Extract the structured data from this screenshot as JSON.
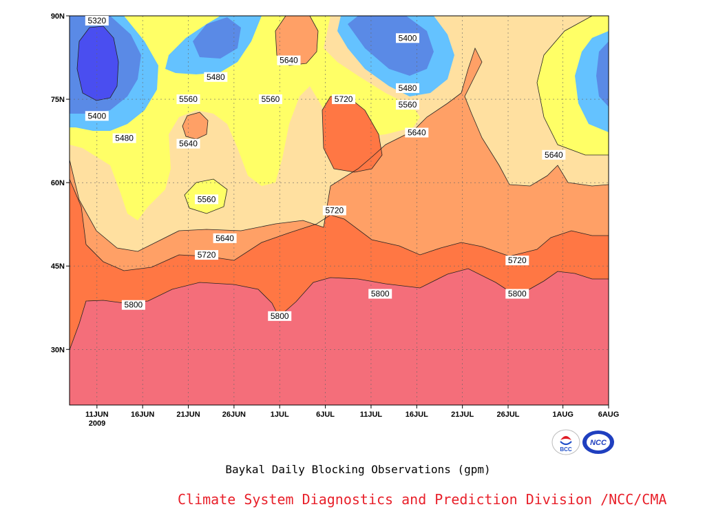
{
  "chart_data": {
    "type": "contour",
    "title": "Baykal Daily Blocking Observations (gpm)",
    "credit": "Climate System Diagnostics and Prediction Division /NCC/CMA",
    "y_axis": {
      "ticks": [
        "90N",
        "75N",
        "60N",
        "45N",
        "30N"
      ],
      "range_lat": [
        20,
        90
      ]
    },
    "x_axis": {
      "ticks": [
        "11JUN",
        "16JUN",
        "21JUN",
        "26JUN",
        "1JUL",
        "6JUL",
        "11JUL",
        "16JUL",
        "21JUL",
        "26JUL",
        "1AUG",
        "6AUG"
      ],
      "year_label": "2009",
      "range": [
        "2009-06-08",
        "2009-08-06"
      ]
    },
    "contour_levels": [
      5320,
      5400,
      5480,
      5560,
      5640,
      5720,
      5800
    ],
    "contour_labels": [
      {
        "text": "5320",
        "date": "2009-06-11",
        "lat": 90
      },
      {
        "text": "5400",
        "date": "2009-06-11",
        "lat": 72
      },
      {
        "text": "5480",
        "date": "2009-06-14",
        "lat": 68
      },
      {
        "text": "5480",
        "date": "2009-06-24",
        "lat": 79
      },
      {
        "text": "5560",
        "date": "2009-06-21",
        "lat": 75
      },
      {
        "text": "5640",
        "date": "2009-06-21",
        "lat": 67
      },
      {
        "text": "5560",
        "date": "2009-06-23",
        "lat": 57
      },
      {
        "text": "5640",
        "date": "2009-06-25",
        "lat": 50
      },
      {
        "text": "5720",
        "date": "2009-06-23",
        "lat": 47
      },
      {
        "text": "5800",
        "date": "2009-06-15",
        "lat": 38
      },
      {
        "text": "5560",
        "date": "2009-06-30",
        "lat": 75
      },
      {
        "text": "5640",
        "date": "2009-07-02",
        "lat": 82
      },
      {
        "text": "5720",
        "date": "2009-07-08",
        "lat": 75
      },
      {
        "text": "5720",
        "date": "2009-07-07",
        "lat": 55
      },
      {
        "text": "5800",
        "date": "2009-07-01",
        "lat": 36
      },
      {
        "text": "5400",
        "date": "2009-07-15",
        "lat": 86
      },
      {
        "text": "5480",
        "date": "2009-07-15",
        "lat": 77
      },
      {
        "text": "5560",
        "date": "2009-07-15",
        "lat": 74
      },
      {
        "text": "5640",
        "date": "2009-07-16",
        "lat": 69
      },
      {
        "text": "5800",
        "date": "2009-07-12",
        "lat": 40
      },
      {
        "text": "5640",
        "date": "2009-07-31",
        "lat": 65
      },
      {
        "text": "5720",
        "date": "2009-07-27",
        "lat": 46
      },
      {
        "text": "5800",
        "date": "2009-07-27",
        "lat": 40
      }
    ],
    "fill_colors": {
      "5320": "#4a4ef0",
      "5400": "#5a8ae6",
      "5480": "#64c2ff",
      "5560": "#ffff66",
      "5640": "#ffe0a0",
      "5720": "#ffa066",
      "5800": "#ff7744",
      "above": "#f46e7a"
    },
    "grid": "dotted"
  },
  "logos": [
    {
      "name": "bcc-logo",
      "text": "BCC"
    },
    {
      "name": "ncc-logo",
      "text": "NCC"
    }
  ]
}
